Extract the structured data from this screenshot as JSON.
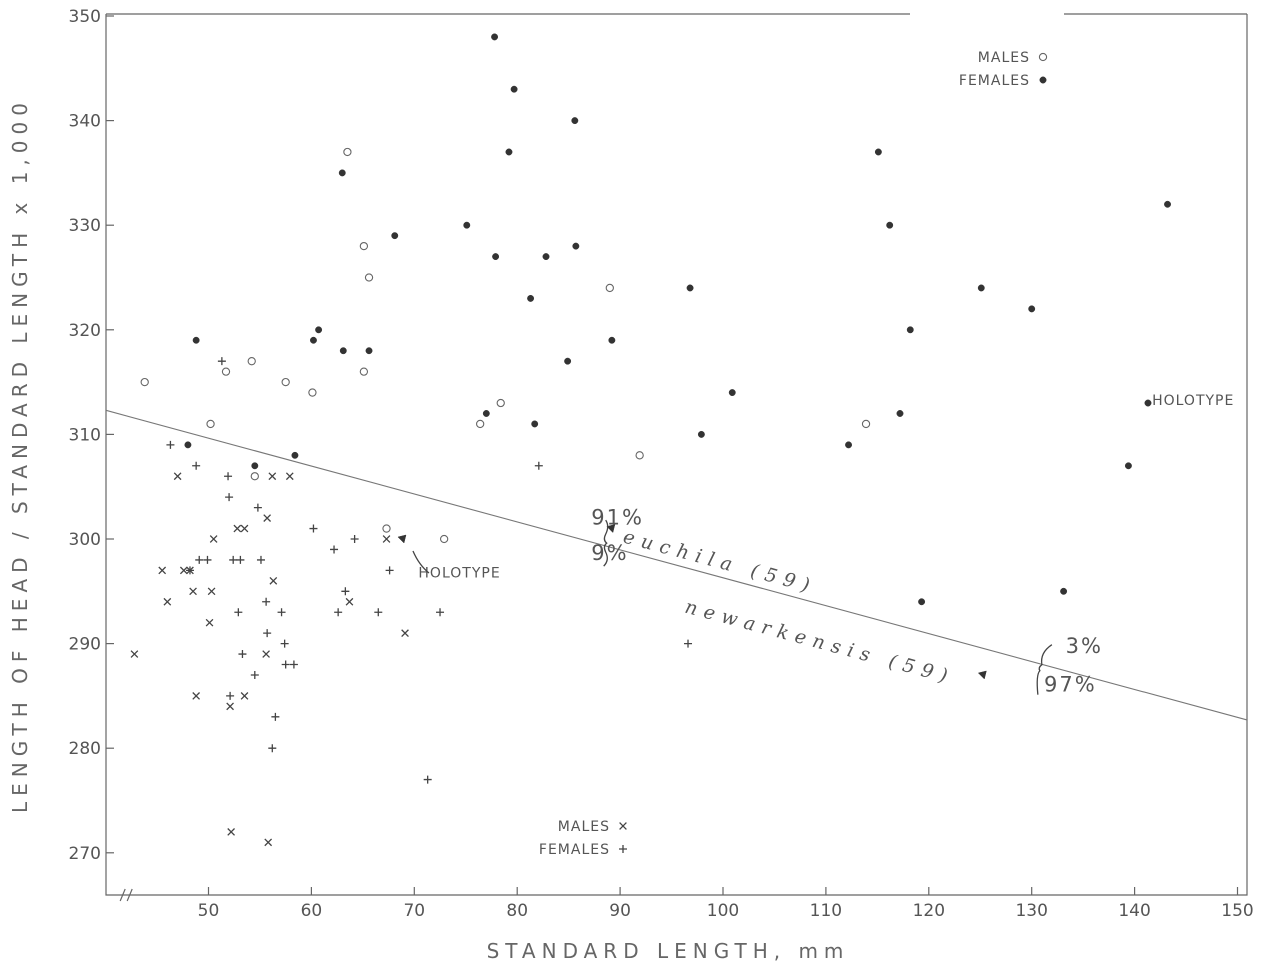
{
  "chart_data": {
    "type": "scatter",
    "title": "",
    "xlabel": "STANDARD LENGTH, mm",
    "ylabel": "LENGTH OF HEAD / STANDARD LENGTH x 1,000",
    "xlim": [
      40,
      150
    ],
    "ylim": [
      266,
      350
    ],
    "x_break_at": 42,
    "x_ticks": [
      50,
      60,
      70,
      80,
      90,
      100,
      110,
      120,
      130,
      140,
      150
    ],
    "y_ticks": [
      270,
      280,
      290,
      300,
      310,
      320,
      330,
      340,
      350
    ],
    "grid": false,
    "legends": [
      {
        "position": "top-right",
        "entries": [
          {
            "label": "MALES",
            "symbol": "open-circle"
          },
          {
            "label": "FEMALES",
            "symbol": "filled-circle"
          }
        ]
      },
      {
        "position": "bottom-center",
        "entries": [
          {
            "label": "MALES",
            "symbol": "x"
          },
          {
            "label": "FEMALES",
            "symbol": "plus"
          }
        ]
      }
    ],
    "discriminant_line": {
      "x": [
        40,
        150
      ],
      "y": [
        312.3,
        282.7
      ]
    },
    "annotations": [
      {
        "text": "91%",
        "x": 87.2,
        "y": 301.4
      },
      {
        "text": "9%",
        "x": 87.2,
        "y": 298.0
      },
      {
        "text": "euchila (59)",
        "x": 90.2,
        "y": 299.7,
        "angle": 15
      },
      {
        "text": "newarkensis (59)",
        "x": 96.2,
        "y": 293.0,
        "angle": 15
      },
      {
        "text": "3%",
        "x": 133.3,
        "y": 289.1
      },
      {
        "text": "97%",
        "x": 131.2,
        "y": 285.4
      },
      {
        "text": "HOLOTYPE",
        "x": 141.7,
        "y": 312.8
      },
      {
        "text": "HOLOTYPE",
        "x": 70.4,
        "y": 296.3
      }
    ],
    "series": [
      {
        "name": "MALES",
        "symbol": "open-circle",
        "points": [
          [
            43.8,
            315
          ],
          [
            50.2,
            311
          ],
          [
            51.7,
            316
          ],
          [
            54.2,
            317
          ],
          [
            54.5,
            306
          ],
          [
            57.5,
            315
          ],
          [
            60.1,
            314
          ],
          [
            63.5,
            337
          ],
          [
            65.1,
            328
          ],
          [
            65.1,
            316
          ],
          [
            65.6,
            325
          ],
          [
            67.3,
            301
          ],
          [
            72.9,
            300
          ],
          [
            76.4,
            311
          ],
          [
            78.4,
            313
          ],
          [
            89.0,
            324
          ],
          [
            91.9,
            308
          ],
          [
            113.9,
            311
          ]
        ]
      },
      {
        "name": "FEMALES",
        "symbol": "filled-circle",
        "points": [
          [
            48.0,
            309
          ],
          [
            48.8,
            319
          ],
          [
            54.5,
            307
          ],
          [
            58.4,
            308
          ],
          [
            60.2,
            319
          ],
          [
            60.7,
            320
          ],
          [
            63.0,
            335
          ],
          [
            63.1,
            318
          ],
          [
            65.6,
            318
          ],
          [
            68.1,
            329
          ],
          [
            75.1,
            330
          ],
          [
            77.0,
            312
          ],
          [
            77.8,
            348
          ],
          [
            77.9,
            327
          ],
          [
            79.2,
            337
          ],
          [
            79.7,
            343
          ],
          [
            81.3,
            323
          ],
          [
            81.7,
            311
          ],
          [
            82.8,
            327
          ],
          [
            84.9,
            317
          ],
          [
            85.6,
            340
          ],
          [
            85.7,
            328
          ],
          [
            89.2,
            319
          ],
          [
            96.8,
            324
          ],
          [
            97.9,
            310
          ],
          [
            100.9,
            314
          ],
          [
            112.2,
            309
          ],
          [
            115.1,
            337
          ],
          [
            116.2,
            330
          ],
          [
            117.2,
            312
          ],
          [
            118.2,
            320
          ],
          [
            119.3,
            294
          ],
          [
            125.1,
            324
          ],
          [
            130.0,
            322
          ],
          [
            133.1,
            295
          ],
          [
            139.4,
            307
          ],
          [
            141.3,
            313
          ],
          [
            143.2,
            332
          ]
        ]
      },
      {
        "name": "MALES",
        "symbol": "x",
        "points": [
          [
            42.8,
            289
          ],
          [
            45.5,
            297
          ],
          [
            46.0,
            294
          ],
          [
            47.0,
            306
          ],
          [
            47.6,
            297
          ],
          [
            48.2,
            297
          ],
          [
            48.5,
            295
          ],
          [
            48.8,
            285
          ],
          [
            50.1,
            292
          ],
          [
            50.3,
            295
          ],
          [
            50.5,
            300
          ],
          [
            52.1,
            284
          ],
          [
            52.2,
            272
          ],
          [
            52.8,
            301
          ],
          [
            53.5,
            285
          ],
          [
            53.5,
            301
          ],
          [
            55.6,
            289
          ],
          [
            55.7,
            302
          ],
          [
            55.8,
            271
          ],
          [
            56.2,
            306
          ],
          [
            56.3,
            296
          ],
          [
            57.9,
            306
          ],
          [
            63.7,
            294
          ],
          [
            67.3,
            300
          ],
          [
            69.1,
            291
          ]
        ]
      },
      {
        "name": "FEMALES",
        "symbol": "plus",
        "points": [
          [
            46.3,
            309
          ],
          [
            48.2,
            297
          ],
          [
            48.8,
            307
          ],
          [
            49.1,
            298
          ],
          [
            49.9,
            298
          ],
          [
            51.3,
            317
          ],
          [
            51.9,
            306
          ],
          [
            52.0,
            304
          ],
          [
            52.1,
            285
          ],
          [
            52.4,
            298
          ],
          [
            52.9,
            293
          ],
          [
            53.1,
            298
          ],
          [
            53.3,
            289
          ],
          [
            54.5,
            287
          ],
          [
            54.8,
            303
          ],
          [
            55.1,
            298
          ],
          [
            55.6,
            294
          ],
          [
            55.7,
            291
          ],
          [
            56.2,
            280
          ],
          [
            56.5,
            283
          ],
          [
            57.1,
            293
          ],
          [
            57.4,
            290
          ],
          [
            57.5,
            288
          ],
          [
            58.3,
            288
          ],
          [
            60.2,
            301
          ],
          [
            62.2,
            299
          ],
          [
            62.6,
            293
          ],
          [
            63.3,
            295
          ],
          [
            64.2,
            300
          ],
          [
            66.5,
            293
          ],
          [
            67.6,
            297
          ],
          [
            71.3,
            277
          ],
          [
            72.5,
            293
          ],
          [
            82.1,
            307
          ],
          [
            96.6,
            290
          ]
        ]
      },
      {
        "name": "",
        "symbol": "filled-triangle",
        "points": [
          [
            68.9,
            300
          ],
          [
            89.2,
            301
          ],
          [
            125.3,
            287
          ]
        ]
      }
    ]
  }
}
